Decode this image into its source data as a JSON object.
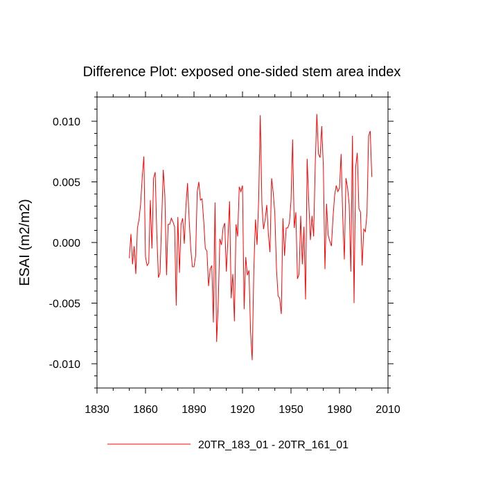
{
  "chart_data": {
    "type": "line",
    "title": "Difference Plot: exposed one-sided stem area index",
    "xlabel": "",
    "ylabel": "ESAI  (m2/m2)",
    "xlim": [
      1830,
      2010
    ],
    "ylim": [
      -0.012,
      0.012
    ],
    "x_ticks": [
      1830,
      1860,
      1890,
      1920,
      1950,
      1980,
      2010
    ],
    "x_tick_labels": [
      "1830",
      "1860",
      "1890",
      "1920",
      "1950",
      "1980",
      "2010"
    ],
    "y_ticks": [
      -0.01,
      -0.005,
      0.0,
      0.005,
      0.01
    ],
    "y_tick_labels": [
      "-0.010",
      "-0.005",
      "0.000",
      "0.005",
      "0.010"
    ],
    "legend_position": "bottom-center",
    "series": [
      {
        "name": "20TR_183_01 - 20TR_161_01",
        "color": "#ff0000",
        "x_start": 1850,
        "x_step": 1,
        "values": [
          -0.0013,
          0.0007,
          -0.0018,
          -0.0003,
          -0.0026,
          0.0012,
          0.0019,
          0.0032,
          0.0054,
          0.0071,
          -0.0012,
          -0.0019,
          -0.0017,
          0.0035,
          -0.0005,
          0.0053,
          0.0058,
          0.0007,
          -0.0029,
          -0.0025,
          0.0018,
          0.006,
          0.0038,
          -0.0027,
          0.0015,
          0.0015,
          0.002,
          0.0017,
          0.0013,
          -0.0052,
          0.0021,
          -0.0025,
          0.0015,
          0.002,
          -0.0001,
          0.003,
          0.0049,
          0.0019,
          -0.0005,
          -0.002,
          -0.002,
          -0.0011,
          0.0042,
          0.005,
          0.0035,
          0.0036,
          0.0018,
          -0.0005,
          -0.0007,
          -0.0036,
          -0.0022,
          -0.0019,
          -0.0066,
          0.0033,
          -0.0082,
          -0.005,
          0.0003,
          -0.0002,
          0.0012,
          0.0016,
          -0.0024,
          0.0003,
          0.0034,
          -0.0046,
          -0.0026,
          -0.0065,
          0.0015,
          0.0005,
          0.0046,
          0.0042,
          0.0047,
          -0.0055,
          -0.0012,
          -0.0027,
          -0.0023,
          -0.0074,
          -0.0097,
          -0.0023,
          0.0019,
          -0.0002,
          0.0035,
          0.0105,
          0.0032,
          0.0011,
          0.0019,
          0.0031,
          0.0007,
          -0.0008,
          0.0053,
          0.0041,
          0.0024,
          -0.0021,
          -0.0044,
          -0.0046,
          -0.0059,
          0.002,
          -0.0011,
          0.0012,
          0.0012,
          0.0016,
          0.0034,
          0.0085,
          0.0012,
          0.0025,
          -0.003,
          -0.0026,
          0.0022,
          -0.0018,
          0.0013,
          -0.0047,
          0.0069,
          0.0033,
          0.0002,
          0.0022,
          0.0005,
          0.0065,
          0.0106,
          0.0073,
          0.007,
          0.0096,
          0.0063,
          -0.0022,
          0.0032,
          0.0006,
          0.0001,
          -0.0003,
          0.0021,
          0.0039,
          0.0047,
          0.0042,
          0.0045,
          0.0073,
          0.0021,
          -0.0014,
          0.0053,
          0.0045,
          0.0031,
          -0.0024,
          0.0088,
          -0.005,
          0.0062,
          0.0074,
          0.0028,
          0.0025,
          -0.0019,
          0.0011,
          0.0009,
          0.0024,
          0.0088,
          0.0092,
          0.0054
        ]
      }
    ]
  }
}
